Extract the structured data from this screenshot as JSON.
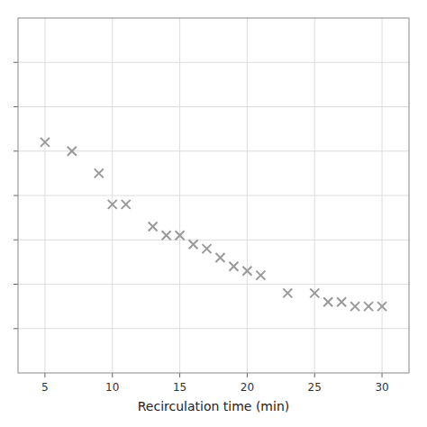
{
  "chart_data": {
    "type": "scatter",
    "xlabel": "Recirculation time (min)",
    "x": [
      5,
      7,
      9,
      10,
      11,
      13,
      14,
      15,
      16,
      17,
      18,
      19,
      20,
      21,
      23,
      25,
      26,
      27,
      28,
      29,
      30
    ],
    "values": [
      7.2,
      7.0,
      6.5,
      5.8,
      5.8,
      5.3,
      5.1,
      5.1,
      4.9,
      4.8,
      4.6,
      4.4,
      4.3,
      4.2,
      3.8,
      3.8,
      3.6,
      3.6,
      3.5,
      3.5,
      3.5
    ],
    "color": "#999999",
    "marker": "x",
    "xlim": [
      3,
      32
    ],
    "ylim": [
      2.0,
      10.0
    ],
    "xticks": [
      5,
      10,
      15,
      20,
      25,
      30
    ],
    "yticks": [
      3,
      4,
      5,
      6,
      7,
      8,
      9
    ],
    "grid": true,
    "tick_labels": "x"
  }
}
